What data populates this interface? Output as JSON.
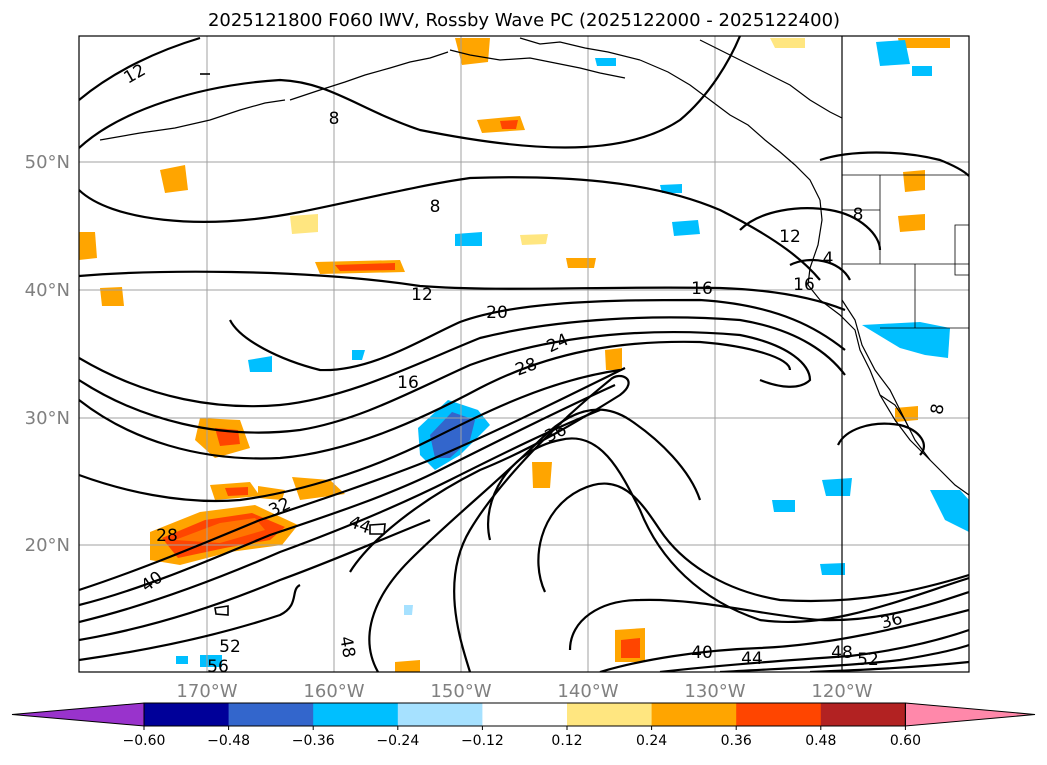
{
  "title": "2025121800 F060 IWV, Rossby Wave PC (2025122000 - 2025122400)",
  "lon_labels": [
    "170°W",
    "160°W",
    "150°W",
    "140°W",
    "130°W",
    "120°W"
  ],
  "lat_labels": [
    "50°N",
    "40°N",
    "30°N",
    "20°N"
  ],
  "colorbar": {
    "colors": [
      "#9933cc",
      "#000099",
      "#3366cc",
      "#00bfff",
      "#a6e1ff",
      "#ffffff",
      "#ffe680",
      "#ffa500",
      "#ff4500",
      "#b22222",
      "#ff88aa"
    ],
    "tick_labels": [
      "−0.60",
      "−0.48",
      "−0.36",
      "−0.24",
      "−0.12",
      "0.12",
      "0.24",
      "0.36",
      "0.48",
      "0.60"
    ]
  },
  "contour_labels": [
    "12",
    "8",
    "8",
    "12",
    "16",
    "20",
    "24",
    "28",
    "16",
    "36",
    "32",
    "28",
    "44",
    "40",
    "52",
    "56",
    "48",
    "40",
    "44",
    "48",
    "52",
    "36",
    "16",
    "12",
    "4",
    "8",
    "8"
  ]
}
